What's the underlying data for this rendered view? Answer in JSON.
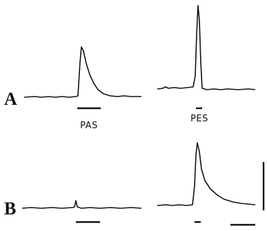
{
  "panels": [
    {
      "label": "A"
    },
    {
      "label": "B"
    }
  ],
  "stimuli": [
    "PAS",
    "PES"
  ]
}
